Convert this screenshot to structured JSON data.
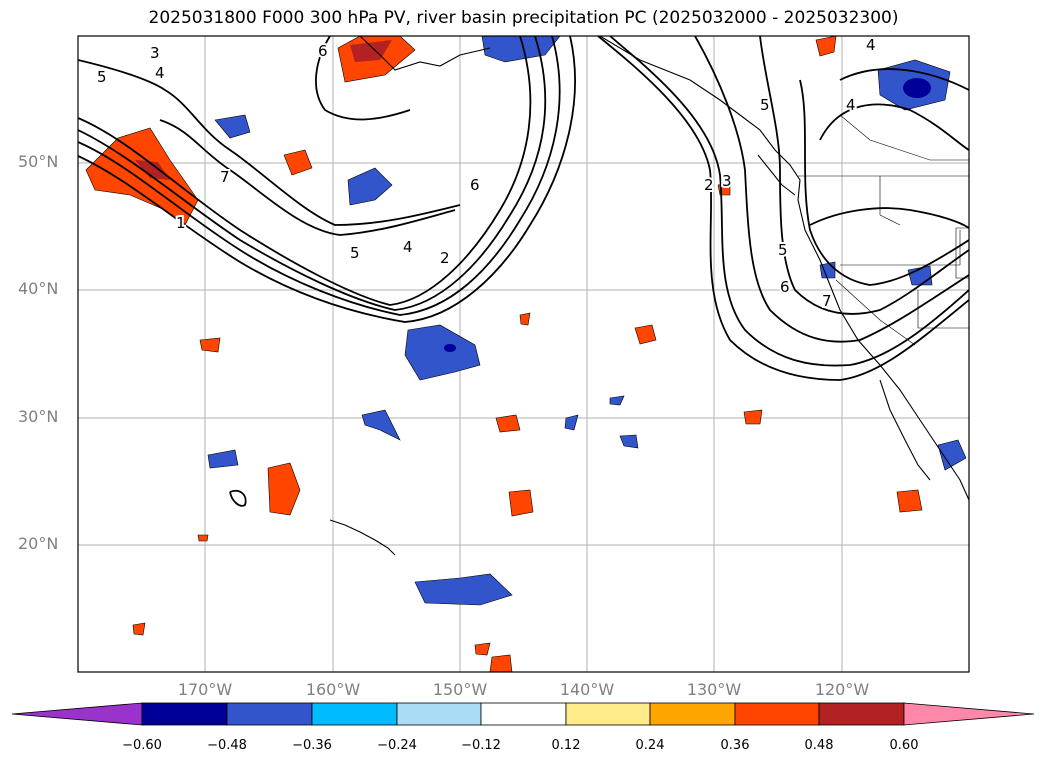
{
  "figure": {
    "title": "2025031800 F000 300 hPa PV, river basin precipitation PC (2025032000 - 2025032300)"
  },
  "map": {
    "projection": "PlateCarree",
    "lon_range": [
      -180,
      -110
    ],
    "lat_range": [
      10,
      60
    ],
    "gridlines": true,
    "lat_labels": [
      {
        "lat": 50,
        "text": "50°N"
      },
      {
        "lat": 40,
        "text": "40°N"
      },
      {
        "lat": 30,
        "text": "30°N"
      },
      {
        "lat": 20,
        "text": "20°N"
      }
    ],
    "lon_labels": [
      {
        "lon": -170,
        "text": "170°W"
      },
      {
        "lon": -160,
        "text": "160°W"
      },
      {
        "lon": -150,
        "text": "150°W"
      },
      {
        "lon": -140,
        "text": "140°W"
      },
      {
        "lon": -130,
        "text": "130°W"
      },
      {
        "lon": -120,
        "text": "120°W"
      }
    ],
    "contour_labels": [
      "3",
      "6",
      "5",
      "4",
      "7",
      "5",
      "4",
      "2",
      "6",
      "2",
      "3",
      "5",
      "4",
      "4",
      "5",
      "6",
      "7",
      "1"
    ],
    "contour_color": "#000000"
  },
  "colorbar": {
    "colors": [
      "#9933cc",
      "#000099",
      "#3355cc",
      "#00bbff",
      "#aaddf5",
      "#ffffff",
      "#ffeb8a",
      "#ffa500",
      "#ff4500",
      "#b22222",
      "#ff88aa"
    ],
    "ticks": [
      "−0.60",
      "−0.48",
      "−0.36",
      "−0.24",
      "−0.12",
      "0.12",
      "0.24",
      "0.36",
      "0.48",
      "0.60"
    ],
    "extend": "both"
  }
}
